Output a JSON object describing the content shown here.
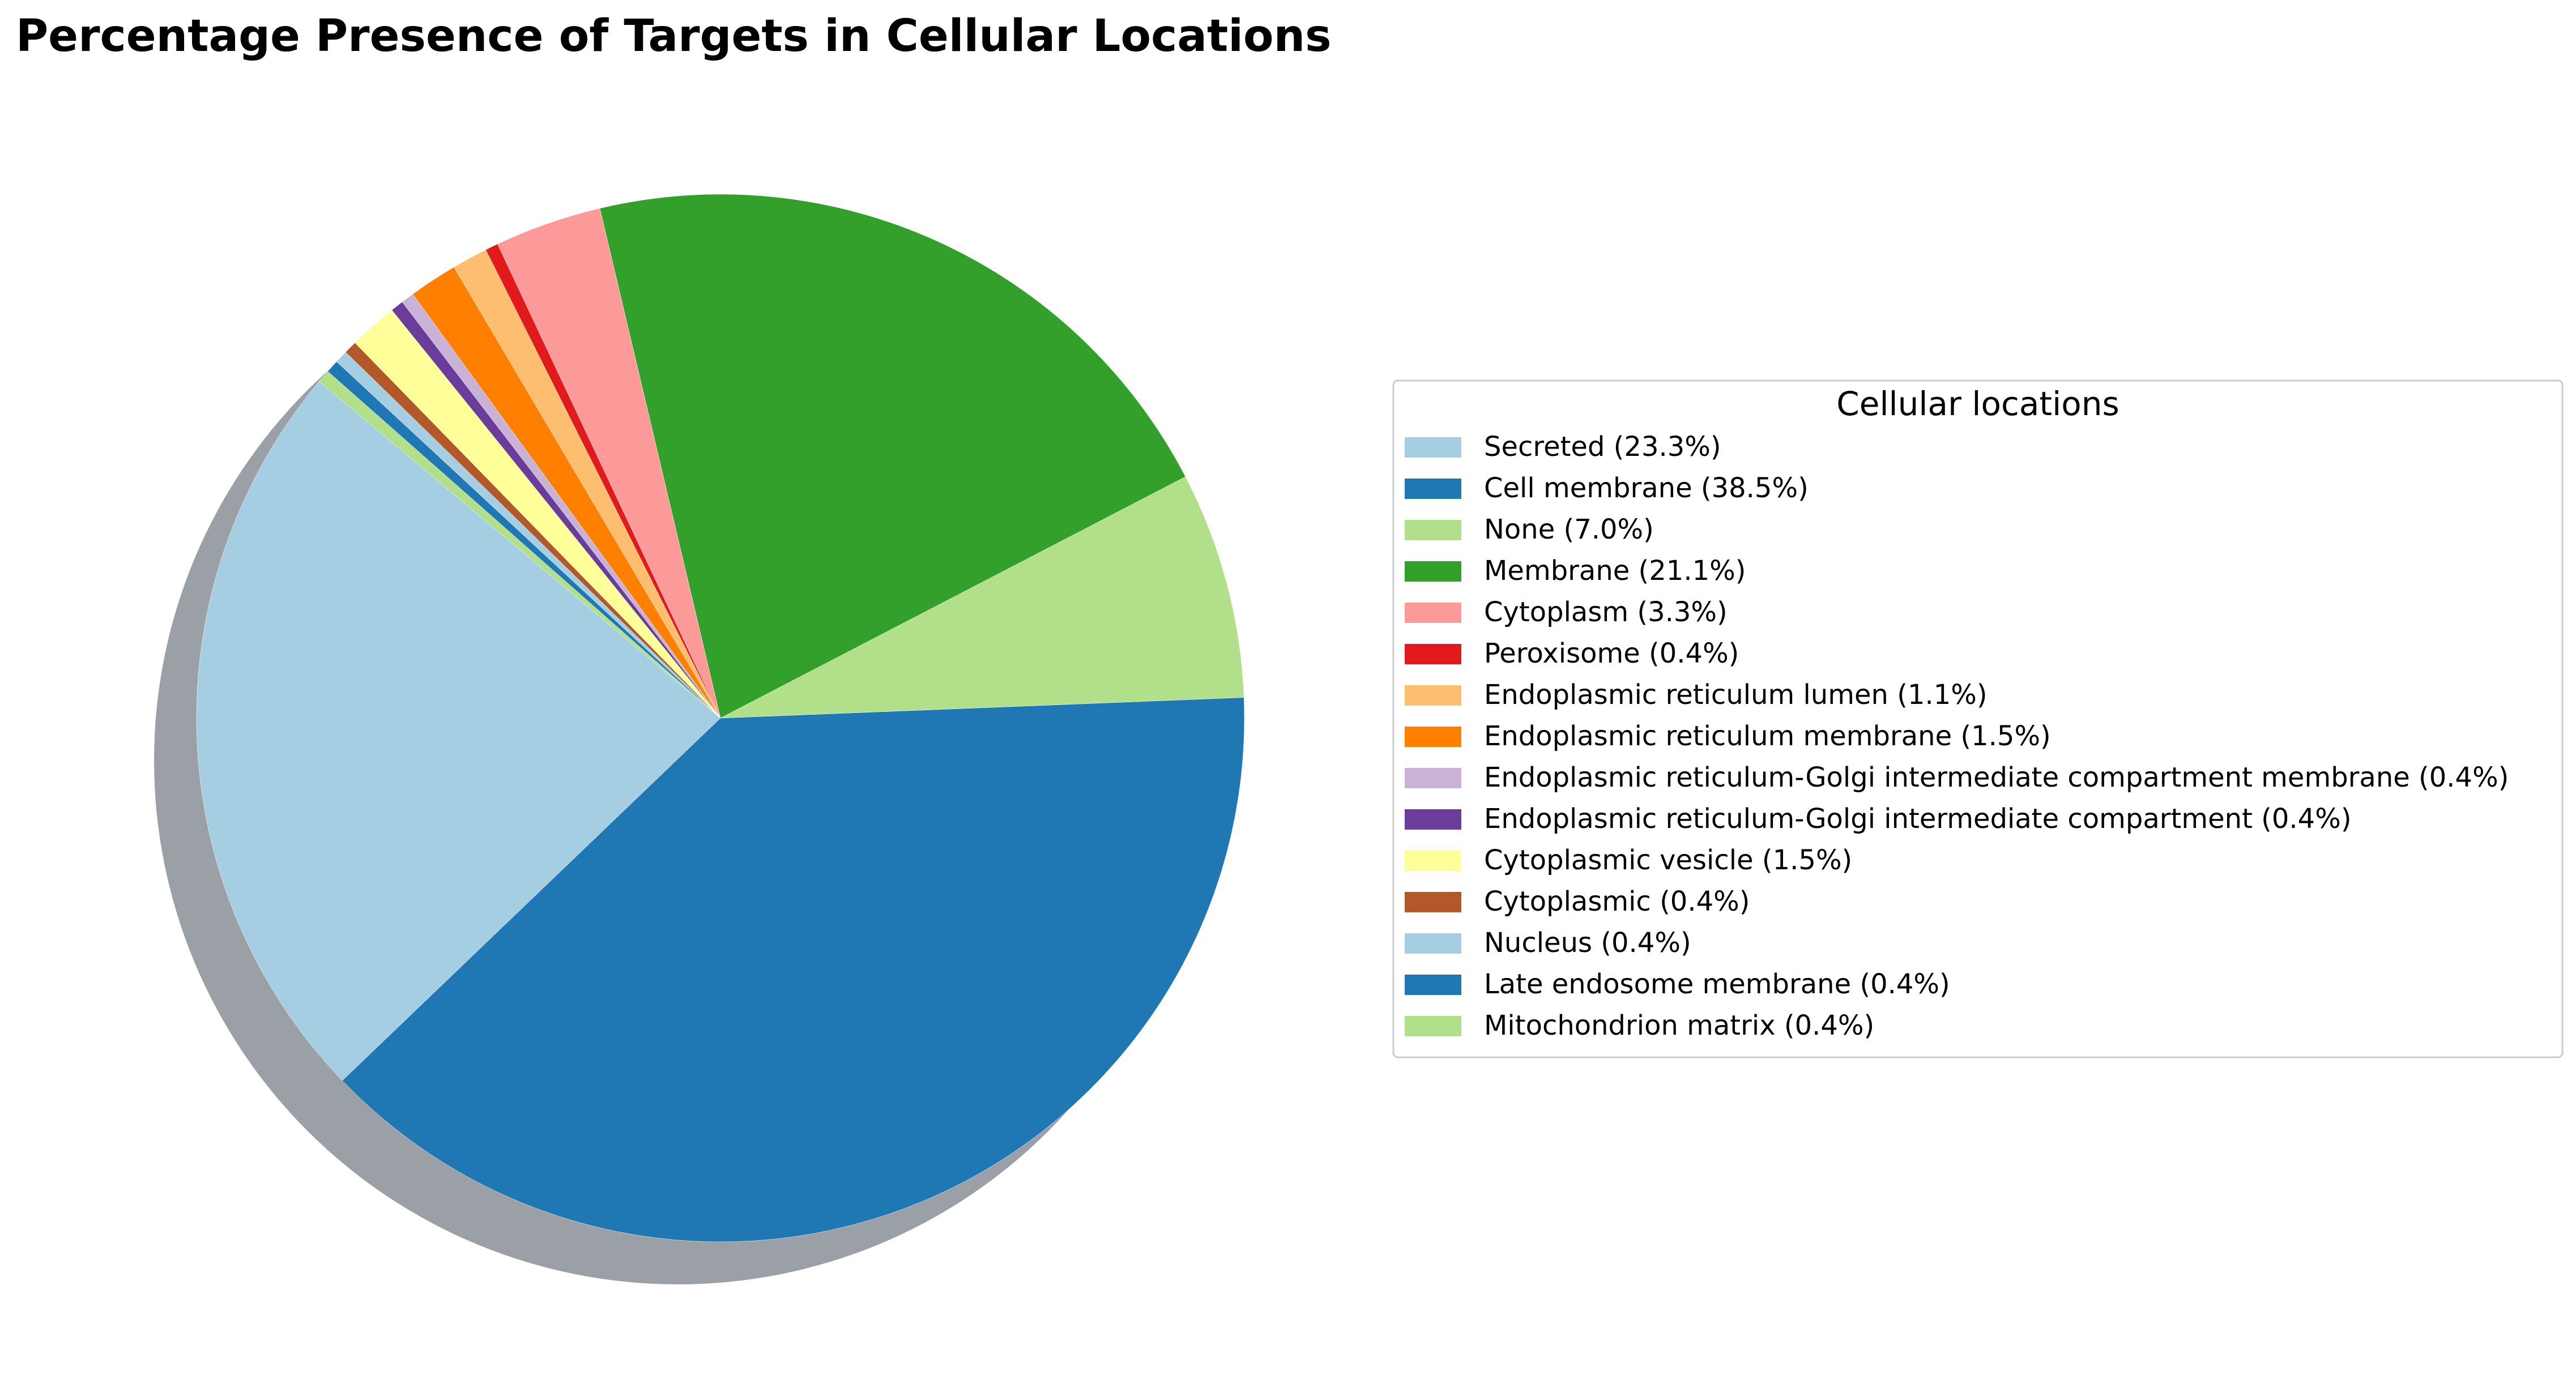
{
  "chart_data": {
    "type": "pie",
    "title": "Percentage Presence of Targets in Cellular Locations",
    "legend_title": "Cellular locations",
    "legend_position": "right",
    "shadow": true,
    "start_angle_deg": 140,
    "direction": "counterclockwise",
    "slices": [
      {
        "label": "Secreted (23.3%)",
        "name": "Secreted",
        "value": 23.3,
        "color": "#a6cee3"
      },
      {
        "label": "Cell membrane (38.5%)",
        "name": "Cell membrane",
        "value": 38.5,
        "color": "#1f78b4"
      },
      {
        "label": "None (7.0%)",
        "name": "None",
        "value": 7.0,
        "color": "#b2df8a"
      },
      {
        "label": "Membrane (21.1%)",
        "name": "Membrane",
        "value": 21.1,
        "color": "#33a02c"
      },
      {
        "label": "Cytoplasm (3.3%)",
        "name": "Cytoplasm",
        "value": 3.3,
        "color": "#fb9a99"
      },
      {
        "label": "Peroxisome (0.4%)",
        "name": "Peroxisome",
        "value": 0.4,
        "color": "#e31a1c"
      },
      {
        "label": "Endoplasmic reticulum lumen (1.1%)",
        "name": "Endoplasmic reticulum lumen",
        "value": 1.1,
        "color": "#fdbf6f"
      },
      {
        "label": "Endoplasmic reticulum membrane (1.5%)",
        "name": "Endoplasmic reticulum membrane",
        "value": 1.5,
        "color": "#ff7f00"
      },
      {
        "label": "Endoplasmic reticulum-Golgi intermediate compartment membrane (0.4%)",
        "name": "Endoplasmic reticulum-Golgi intermediate compartment membrane",
        "value": 0.4,
        "color": "#cab2d6"
      },
      {
        "label": "Endoplasmic reticulum-Golgi intermediate compartment (0.4%)",
        "name": "Endoplasmic reticulum-Golgi intermediate compartment",
        "value": 0.4,
        "color": "#6a3d9a"
      },
      {
        "label": "Cytoplasmic vesicle (1.5%)",
        "name": "Cytoplasmic vesicle",
        "value": 1.5,
        "color": "#ffff99"
      },
      {
        "label": "Cytoplasmic (0.4%)",
        "name": "Cytoplasmic",
        "value": 0.4,
        "color": "#b15928"
      },
      {
        "label": "Nucleus (0.4%)",
        "name": "Nucleus",
        "value": 0.4,
        "color": "#a6cee3"
      },
      {
        "label": "Late endosome membrane (0.4%)",
        "name": "Late endosome membrane",
        "value": 0.4,
        "color": "#1f78b4"
      },
      {
        "label": "Mitochondrion matrix (0.4%)",
        "name": "Mitochondrion matrix",
        "value": 0.4,
        "color": "#b2df8a"
      }
    ]
  }
}
